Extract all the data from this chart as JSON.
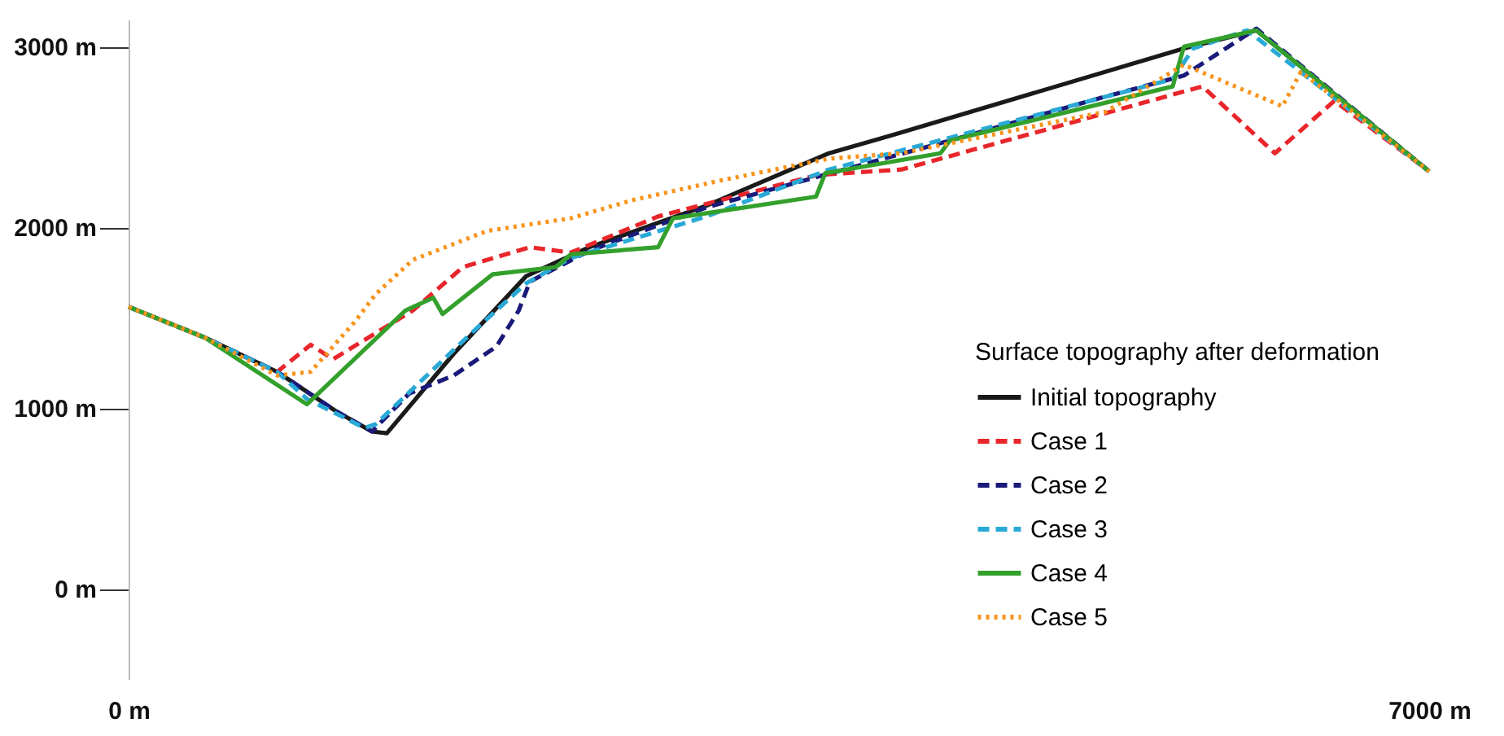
{
  "chart_data": {
    "type": "line",
    "legend_title": "Surface topography after deformation",
    "legend": "bottom right",
    "grid": false,
    "xlim": [
      0,
      7000
    ],
    "xticks": [
      {
        "value": 0,
        "label": "0 m"
      },
      {
        "value": 7000,
        "label": "7000 m"
      }
    ],
    "ylim": [
      -500,
      3150
    ],
    "yticks": [
      {
        "value": 0,
        "label": "0 m"
      },
      {
        "value": 1000,
        "label": "1000 m"
      },
      {
        "value": 2000,
        "label": "2000 m"
      },
      {
        "value": 3000,
        "label": "3000 m"
      }
    ],
    "series": [
      {
        "name": "Initial topography",
        "color": "#1a1a1a",
        "line_style": "solid",
        "x": [
          0,
          410,
          800,
          1120,
          1310,
          1390,
          1750,
          2140,
          2480,
          3110,
          3770,
          4110,
          5680,
          6070,
          7000
        ],
        "values": [
          1560,
          1390,
          1200,
          980,
          870,
          860,
          1300,
          1730,
          1890,
          2120,
          2410,
          2510,
          2990,
          3090,
          2310
        ]
      },
      {
        "name": "Case 1",
        "color": "#e8262b",
        "line_style": "dashed",
        "x": [
          0,
          410,
          800,
          980,
          1100,
          1530,
          1800,
          2160,
          2380,
          2850,
          3710,
          4160,
          5780,
          6170,
          6490,
          7000
        ],
        "values": [
          1560,
          1390,
          1200,
          1350,
          1270,
          1540,
          1780,
          1890,
          1860,
          2060,
          2290,
          2320,
          2780,
          2410,
          2700,
          2310
        ]
      },
      {
        "name": "Case 2",
        "color": "#1a1a7a",
        "line_style": "dashed",
        "x": [
          0,
          410,
          800,
          1120,
          1310,
          1510,
          1750,
          1980,
          2100,
          2160,
          2480,
          3110,
          3710,
          4420,
          5210,
          5680,
          6070,
          7000
        ],
        "values": [
          1560,
          1390,
          1200,
          980,
          870,
          1080,
          1180,
          1340,
          1540,
          1700,
          1870,
          2110,
          2280,
          2480,
          2710,
          2840,
          3100,
          2310
        ]
      },
      {
        "name": "Case 3",
        "color": "#29a9d6",
        "line_style": "dashed",
        "x": [
          0,
          410,
          800,
          960,
          1270,
          1330,
          1830,
          2140,
          2380,
          3110,
          3770,
          5620,
          5730,
          6020,
          7000
        ],
        "values": [
          1560,
          1390,
          1200,
          1050,
          890,
          910,
          1400,
          1690,
          1830,
          2060,
          2320,
          2820,
          2990,
          3090,
          2310
        ]
      },
      {
        "name": "Case 4",
        "color": "#33a02c",
        "line_style": "solid",
        "x": [
          0,
          410,
          960,
          1490,
          1640,
          1690,
          1960,
          2300,
          2380,
          2850,
          2930,
          3700,
          3750,
          4370,
          4420,
          5620,
          5680,
          6070,
          7000
        ],
        "values": [
          1560,
          1390,
          1020,
          1540,
          1610,
          1520,
          1740,
          1780,
          1850,
          1890,
          2050,
          2170,
          2300,
          2410,
          2480,
          2780,
          3000,
          3090,
          2310
        ]
      },
      {
        "name": "Case 5",
        "color": "#f7941d",
        "line_style": "dotted",
        "x": [
          0,
          410,
          800,
          980,
          1220,
          1330,
          1530,
          1930,
          2380,
          2710,
          3190,
          3770,
          4160,
          5260,
          5680,
          6210,
          6310,
          6500,
          7000
        ],
        "values": [
          1560,
          1390,
          1180,
          1200,
          1480,
          1630,
          1820,
          1980,
          2050,
          2150,
          2260,
          2380,
          2410,
          2640,
          2900,
          2670,
          2860,
          2710,
          2310
        ]
      }
    ]
  }
}
